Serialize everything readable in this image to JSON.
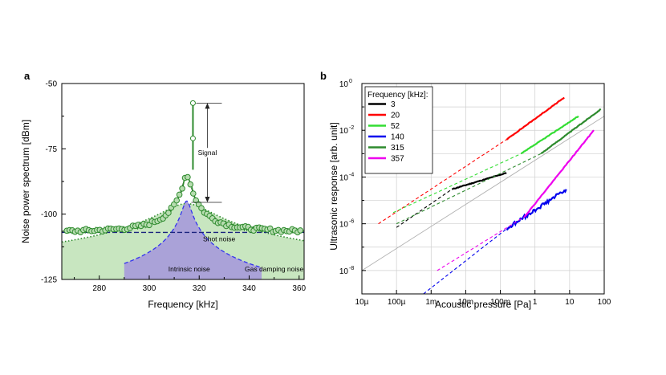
{
  "chart_data": [
    {
      "panel_label": "a",
      "type": "line",
      "xlabel": "Frequency [kHz]",
      "ylabel": "Noise power spectrum [dBm]",
      "xlim": [
        265,
        362
      ],
      "ylim": [
        -125,
        -50
      ],
      "xticks": [
        280,
        300,
        320,
        340,
        360
      ],
      "yticks": [
        -125,
        -100,
        -75,
        -50
      ],
      "annotations": {
        "signal": "Signal",
        "shot": "Shot noise",
        "intrinsic": "Intrinsic noise",
        "gas": "Gas damping noise"
      },
      "resonance_khz": 315,
      "signal_khz": 317.5,
      "signal_top_dbm": -57.5,
      "signal_mid_dbm": -71,
      "signal_bracket_dbm": [
        -57.5,
        -95.5
      ],
      "shot_noise_dbm": -107,
      "peak_dbm": -85,
      "intrinsic_peak_dbm": -95,
      "gas_floor_dbm": -119,
      "colors": {
        "data": "#2e8b2e",
        "marker_fill": "#b7dcb0",
        "gas_fill": "#c8e6c0",
        "gas_line": "#2a8a2a",
        "intrinsic_fill": "#aaa2d8",
        "intrinsic_line": "#3333ee",
        "shot_line": "#1a237e",
        "fit_line": "#1a3a1a"
      }
    },
    {
      "panel_label": "b",
      "type": "line",
      "xlabel": "Acoustic pressure [Pa]",
      "ylabel": "Ultrasonic response [arb. unit]",
      "xscale": "log",
      "yscale": "log",
      "xlim": [
        1e-05,
        100
      ],
      "ylim": [
        1e-09,
        1
      ],
      "xtick_labels": [
        "10µ",
        "100µ",
        "1m",
        "10m",
        "100m",
        "1",
        "10",
        "100"
      ],
      "ytick_labels": [
        {
          "base": "10",
          "exp": "-8"
        },
        {
          "base": "10",
          "exp": "-6"
        },
        {
          "base": "10",
          "exp": "-4"
        },
        {
          "base": "10",
          "exp": "-2"
        },
        {
          "base": "10",
          "exp": "0"
        }
      ],
      "grid": true,
      "legend_title": "Frequency [kHz]:",
      "legend_position": "top-left",
      "reference_line": {
        "from": [
          1e-05,
          1e-08
        ],
        "to": [
          100,
          0.04
        ],
        "color": "#b0b0b0"
      },
      "series": [
        {
          "name": "3",
          "color": "#000000",
          "dashed_from": [
            0.0001,
            7e-07
          ],
          "solid_from": [
            0.004,
            3e-05
          ],
          "solid_to": [
            0.15,
            0.00015
          ]
        },
        {
          "name": "20",
          "color": "#ff0000",
          "dashed_from": [
            3e-05,
            1e-06
          ],
          "solid_from": [
            0.15,
            0.004
          ],
          "solid_to": [
            7,
            0.25
          ]
        },
        {
          "name": "52",
          "color": "#33dd33",
          "dashed_from": [
            8e-05,
            3e-06
          ],
          "solid_from": [
            0.4,
            0.001
          ],
          "solid_to": [
            18,
            0.04
          ]
        },
        {
          "name": "140",
          "color": "#0000ee",
          "dashed_from": [
            0.0006,
            1e-09
          ],
          "solid_from": [
            0.15,
            6e-07
          ],
          "solid_to": [
            8,
            3e-05
          ]
        },
        {
          "name": "315",
          "color": "#2e8b2e",
          "dashed_from": [
            0.0001,
            1e-06
          ],
          "solid_from": [
            1.5,
            0.001
          ],
          "solid_to": [
            80,
            0.08
          ]
        },
        {
          "name": "357",
          "color": "#ee00ee",
          "dashed_from": [
            0.0015,
            1e-08
          ],
          "solid_from": [
            0.5,
            2e-06
          ],
          "solid_to": [
            50,
            0.01
          ]
        }
      ]
    }
  ]
}
